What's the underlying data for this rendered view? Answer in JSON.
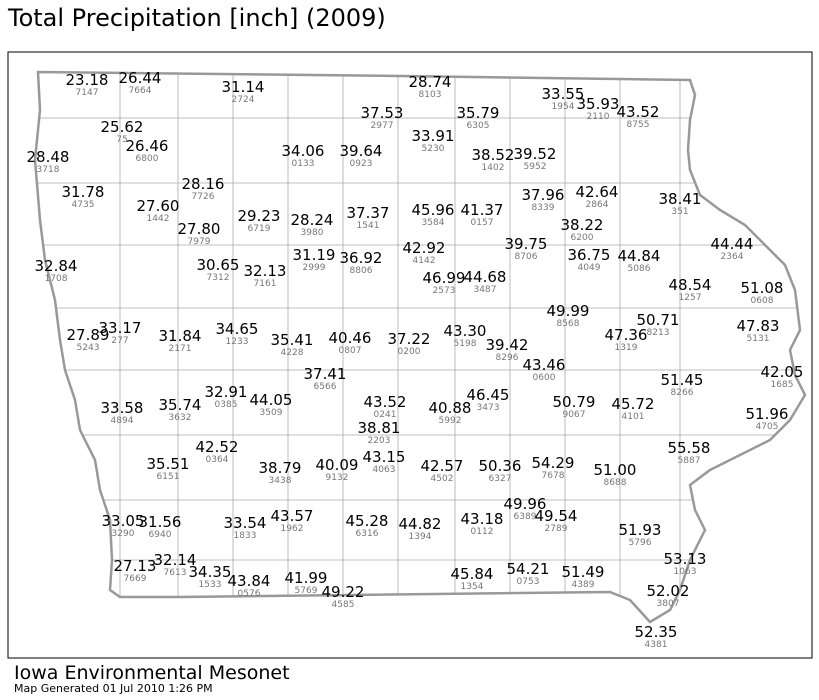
{
  "title": "Total Precipitation [inch] (2009)",
  "footer": {
    "source": "Iowa Environmental Mesonet",
    "generated": "Map Generated 01 Jul 2010 1:26 PM"
  },
  "stations": [
    {
      "value": "23.18",
      "id": "7147"
    },
    {
      "value": "26.44",
      "id": "7664"
    },
    {
      "value": "31.14",
      "id": "2724"
    },
    {
      "value": "28.74",
      "id": "8103"
    },
    {
      "value": "37.53",
      "id": "2977"
    },
    {
      "value": "35.79",
      "id": "6305"
    },
    {
      "value": "33.55",
      "id": "1954"
    },
    {
      "value": "35.93",
      "id": "2110"
    },
    {
      "value": "43.52",
      "id": "8755"
    },
    {
      "value": "25.62",
      "id": "75"
    },
    {
      "value": "26.46",
      "id": "6800"
    },
    {
      "value": "28.48",
      "id": "3718"
    },
    {
      "value": "34.06",
      "id": "0133"
    },
    {
      "value": "39.64",
      "id": "0923"
    },
    {
      "value": "33.91",
      "id": "5230"
    },
    {
      "value": "38.52",
      "id": "1402"
    },
    {
      "value": "39.52",
      "id": "5952"
    },
    {
      "value": "28.16",
      "id": "7726"
    },
    {
      "value": "31.78",
      "id": "4735"
    },
    {
      "value": "27.60",
      "id": "1442"
    },
    {
      "value": "27.80",
      "id": "7979"
    },
    {
      "value": "29.23",
      "id": "6719"
    },
    {
      "value": "28.24",
      "id": "3980"
    },
    {
      "value": "37.37",
      "id": "1541"
    },
    {
      "value": "45.96",
      "id": "3584"
    },
    {
      "value": "41.37",
      "id": "0157"
    },
    {
      "value": "37.96",
      "id": "8339"
    },
    {
      "value": "42.64",
      "id": "2864"
    },
    {
      "value": "38.41",
      "id": "351"
    },
    {
      "value": "38.22",
      "id": "6200"
    },
    {
      "value": "44.44",
      "id": "2364"
    },
    {
      "value": "32.84",
      "id": "1708"
    },
    {
      "value": "30.65",
      "id": "7312"
    },
    {
      "value": "32.13",
      "id": "7161"
    },
    {
      "value": "31.19",
      "id": "2999"
    },
    {
      "value": "36.92",
      "id": "8806"
    },
    {
      "value": "42.92",
      "id": "4142"
    },
    {
      "value": "39.75",
      "id": "8706"
    },
    {
      "value": "36.75",
      "id": "4049"
    },
    {
      "value": "44.84",
      "id": "5086"
    },
    {
      "value": "46.99",
      "id": "2573"
    },
    {
      "value": "44.68",
      "id": "3487"
    },
    {
      "value": "48.54",
      "id": "1257"
    },
    {
      "value": "51.08",
      "id": "0608"
    },
    {
      "value": "27.89",
      "id": "5243"
    },
    {
      "value": "33.17",
      "id": "277"
    },
    {
      "value": "31.84",
      "id": "2171"
    },
    {
      "value": "34.65",
      "id": "1233"
    },
    {
      "value": "35.41",
      "id": "4228"
    },
    {
      "value": "40.46",
      "id": "0807"
    },
    {
      "value": "37.22",
      "id": "0200"
    },
    {
      "value": "43.30",
      "id": "5198"
    },
    {
      "value": "49.99",
      "id": "8568"
    },
    {
      "value": "50.71",
      "id": "8213"
    },
    {
      "value": "47.83",
      "id": "5131"
    },
    {
      "value": "39.42",
      "id": "8296"
    },
    {
      "value": "47.36",
      "id": "1319"
    },
    {
      "value": "43.46",
      "id": "0600"
    },
    {
      "value": "37.41",
      "id": "6566"
    },
    {
      "value": "33.58",
      "id": "4894"
    },
    {
      "value": "35.74",
      "id": "3632"
    },
    {
      "value": "32.91",
      "id": "0385"
    },
    {
      "value": "44.05",
      "id": "3509"
    },
    {
      "value": "43.52",
      "id": "0241"
    },
    {
      "value": "40.88",
      "id": "5992"
    },
    {
      "value": "46.45",
      "id": "3473"
    },
    {
      "value": "50.79",
      "id": "9067"
    },
    {
      "value": "45.72",
      "id": "4101"
    },
    {
      "value": "51.45",
      "id": "8266"
    },
    {
      "value": "42.05",
      "id": "1685"
    },
    {
      "value": "51.96",
      "id": "4705"
    },
    {
      "value": "38.81",
      "id": "2203"
    },
    {
      "value": "42.52",
      "id": "0364"
    },
    {
      "value": "55.58",
      "id": "5887"
    },
    {
      "value": "35.51",
      "id": "6151"
    },
    {
      "value": "38.79",
      "id": "3438"
    },
    {
      "value": "40.09",
      "id": "9132"
    },
    {
      "value": "43.15",
      "id": "4063"
    },
    {
      "value": "42.57",
      "id": "4502"
    },
    {
      "value": "50.36",
      "id": "6327"
    },
    {
      "value": "54.29",
      "id": "7678"
    },
    {
      "value": "51.00",
      "id": "8688"
    },
    {
      "value": "49.96",
      "id": "6389"
    },
    {
      "value": "33.05",
      "id": "3290"
    },
    {
      "value": "31.56",
      "id": "6940"
    },
    {
      "value": "33.54",
      "id": "1833"
    },
    {
      "value": "43.57",
      "id": "1962"
    },
    {
      "value": "45.28",
      "id": "6316"
    },
    {
      "value": "44.82",
      "id": "1394"
    },
    {
      "value": "43.18",
      "id": "0112"
    },
    {
      "value": "49.54",
      "id": "2789"
    },
    {
      "value": "51.93",
      "id": "5796"
    },
    {
      "value": "27.13",
      "id": "7669"
    },
    {
      "value": "32.14",
      "id": "7613"
    },
    {
      "value": "34.35",
      "id": "1533"
    },
    {
      "value": "43.84",
      "id": "0576"
    },
    {
      "value": "41.99",
      "id": "5769"
    },
    {
      "value": "49.22",
      "id": "4585"
    },
    {
      "value": "45.84",
      "id": "1354"
    },
    {
      "value": "54.21",
      "id": "0753"
    },
    {
      "value": "51.49",
      "id": "4389"
    },
    {
      "value": "53.13",
      "id": "1063"
    },
    {
      "value": "52.02",
      "id": "3807"
    },
    {
      "value": "52.35",
      "id": "4381"
    }
  ]
}
